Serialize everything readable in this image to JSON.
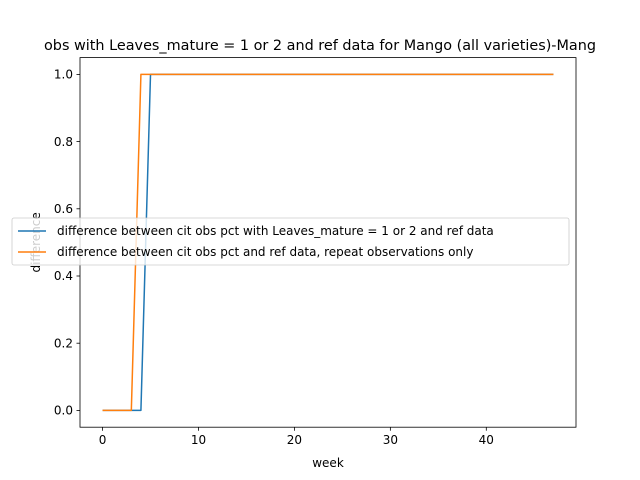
{
  "chart_data": {
    "type": "line",
    "title": "obs with Leaves_mature = 1 or 2 and ref data for Mango (all varieties)-Mang",
    "xlabel": "week",
    "ylabel": "difference",
    "xlim": [
      -2.35,
      49.35
    ],
    "ylim": [
      -0.05,
      1.05
    ],
    "xticks": [
      0,
      10,
      20,
      30,
      40
    ],
    "yticks": [
      0.0,
      0.2,
      0.4,
      0.6,
      0.8,
      1.0
    ],
    "xtick_labels": [
      "0",
      "10",
      "20",
      "30",
      "40"
    ],
    "ytick_labels": [
      "0.0",
      "0.2",
      "0.4",
      "0.6",
      "0.8",
      "1.0"
    ],
    "grid": false,
    "legend_position": "center-left",
    "series": [
      {
        "name": "difference between cit obs pct with Leaves_mature = 1 or 2 and ref data",
        "color": "#1f77b4",
        "x": [
          0,
          1,
          2,
          3,
          4,
          5,
          6,
          7,
          8,
          9,
          10,
          11,
          12,
          13,
          14,
          15,
          16,
          17,
          18,
          19,
          20,
          21,
          22,
          23,
          24,
          25,
          26,
          27,
          28,
          29,
          30,
          31,
          32,
          33,
          34,
          35,
          36,
          37,
          38,
          39,
          40,
          41,
          42,
          43,
          44,
          45,
          46,
          47
        ],
        "y": [
          0,
          0,
          0,
          0,
          0,
          1,
          1,
          1,
          1,
          1,
          1,
          1,
          1,
          1,
          1,
          1,
          1,
          1,
          1,
          1,
          1,
          1,
          1,
          1,
          1,
          1,
          1,
          1,
          1,
          1,
          1,
          1,
          1,
          1,
          1,
          1,
          1,
          1,
          1,
          1,
          1,
          1,
          1,
          1,
          1,
          1,
          1,
          1
        ]
      },
      {
        "name": "difference between cit obs pct and ref data, repeat observations only",
        "color": "#ff7f0e",
        "x": [
          0,
          1,
          2,
          3,
          4,
          5,
          6,
          7,
          8,
          9,
          10,
          11,
          12,
          13,
          14,
          15,
          16,
          17,
          18,
          19,
          20,
          21,
          22,
          23,
          24,
          25,
          26,
          27,
          28,
          29,
          30,
          31,
          32,
          33,
          34,
          35,
          36,
          37,
          38,
          39,
          40,
          41,
          42,
          43,
          44,
          45,
          46,
          47
        ],
        "y": [
          0,
          0,
          0,
          0,
          1,
          1,
          1,
          1,
          1,
          1,
          1,
          1,
          1,
          1,
          1,
          1,
          1,
          1,
          1,
          1,
          1,
          1,
          1,
          1,
          1,
          1,
          1,
          1,
          1,
          1,
          1,
          1,
          1,
          1,
          1,
          1,
          1,
          1,
          1,
          1,
          1,
          1,
          1,
          1,
          1,
          1,
          1,
          1
        ]
      }
    ]
  }
}
